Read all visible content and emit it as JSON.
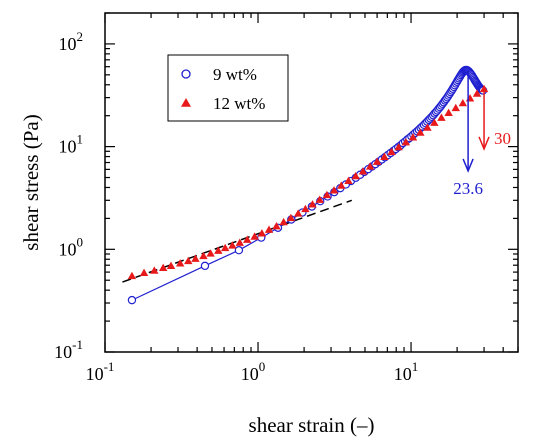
{
  "chart_data": {
    "type": "scatter",
    "xlabel": "shear strain (–)",
    "ylabel": "shear stress (Pa)",
    "x_scale": "log",
    "y_scale": "log",
    "xlim": [
      0.1,
      50
    ],
    "ylim": [
      0.1,
      200
    ],
    "x_ticks": [
      {
        "value": 0.1,
        "base": "10",
        "exp": "-1"
      },
      {
        "value": 1,
        "base": "10",
        "exp": "0"
      },
      {
        "value": 10,
        "base": "10",
        "exp": "1"
      }
    ],
    "y_ticks": [
      {
        "value": 0.1,
        "base": "10",
        "exp": "-1"
      },
      {
        "value": 1,
        "base": "10",
        "exp": "0"
      },
      {
        "value": 10,
        "base": "10",
        "exp": "1"
      },
      {
        "value": 100,
        "base": "10",
        "exp": "2"
      }
    ],
    "grid": false,
    "legend_position": "top-left",
    "series": [
      {
        "name": "9 wt%",
        "marker": "open-circle",
        "color": "#1f1fd0",
        "connected": true,
        "x": [
          0.15,
          0.45,
          0.75,
          1.05,
          1.35,
          1.65,
          1.95,
          2.25,
          2.55,
          2.85,
          3.15,
          3.45,
          3.75,
          4.05,
          4.35,
          4.65,
          4.95,
          5.25,
          5.55,
          5.85,
          6.15,
          6.45,
          6.75,
          7.05,
          7.35,
          7.65,
          7.95,
          8.25,
          8.55,
          8.85,
          9.15,
          9.45,
          9.75,
          10.05,
          10.35,
          10.65,
          10.95,
          11.25,
          11.55,
          11.85,
          12.15,
          12.45,
          12.75,
          13.05,
          13.35,
          13.65,
          13.95,
          14.25,
          14.55,
          14.85,
          15.15,
          15.45,
          15.75,
          16.05,
          16.35,
          16.65,
          16.95,
          17.25,
          17.55,
          17.85,
          18.15,
          18.45,
          18.75,
          19.05,
          19.35,
          19.65,
          19.95,
          20.25,
          20.55,
          20.85,
          21.15,
          21.45,
          21.75,
          22.05,
          22.35,
          22.65,
          22.95,
          23.25,
          23.55,
          23.85,
          24.15,
          24.45,
          24.75,
          25.05,
          25.35,
          25.65,
          25.95,
          26.25,
          26.55,
          26.85,
          27.15,
          27.45,
          27.75,
          28.05,
          28.35,
          28.65,
          28.95,
          29.25,
          29.55
        ],
        "y": [
          0.32,
          0.69,
          0.98,
          1.3,
          1.62,
          1.95,
          2.28,
          2.61,
          2.94,
          3.27,
          3.6,
          3.94,
          4.28,
          4.62,
          4.97,
          5.32,
          5.67,
          6.03,
          6.39,
          6.75,
          7.12,
          7.5,
          7.88,
          8.27,
          8.66,
          9.06,
          9.47,
          9.89,
          10.3,
          10.8,
          11.2,
          11.7,
          12.1,
          12.6,
          13.1,
          13.6,
          14.1,
          14.6,
          15.2,
          15.7,
          16.3,
          16.9,
          17.5,
          18.2,
          18.8,
          19.5,
          20.2,
          21,
          21.7,
          22.5,
          23.4,
          24.2,
          25.1,
          26.1,
          27,
          28.1,
          29.1,
          30.2,
          31.4,
          32.6,
          33.9,
          35.2,
          36.6,
          38.1,
          39.6,
          41.2,
          42.8,
          44.5,
          46.2,
          47.9,
          49.6,
          51.2,
          52.7,
          54,
          55,
          55.6,
          55.8,
          55.5,
          54.9,
          54,
          52.9,
          51.7,
          50.4,
          49.1,
          47.7,
          46.4,
          45.1,
          43.8,
          42.6,
          41.5,
          40.4,
          39.4,
          38.5,
          37.7,
          36.9,
          36.3,
          35.8,
          35.4,
          35.2
        ]
      },
      {
        "name": "12 wt%",
        "marker": "filled-triangle",
        "color": "#e8191b",
        "connected": false,
        "x": [
          0.15,
          0.18,
          0.21,
          0.24,
          0.27,
          0.31,
          0.35,
          0.39,
          0.44,
          0.49,
          0.55,
          0.61,
          0.68,
          0.76,
          0.85,
          0.95,
          1.06,
          1.18,
          1.32,
          1.47,
          1.64,
          1.83,
          2.04,
          2.27,
          2.53,
          2.82,
          3.14,
          3.5,
          3.9,
          4.35,
          4.85,
          5.4,
          6,
          6.7,
          7.45,
          8.3,
          9.25,
          10.3,
          11.5,
          12.8,
          14.2,
          15.8,
          17.6,
          19.6,
          21.8,
          24.3,
          27,
          30
        ],
        "y": [
          0.55,
          0.59,
          0.62,
          0.66,
          0.69,
          0.73,
          0.77,
          0.81,
          0.86,
          0.91,
          0.97,
          1.03,
          1.09,
          1.16,
          1.24,
          1.33,
          1.43,
          1.55,
          1.68,
          1.84,
          2.02,
          2.23,
          2.47,
          2.74,
          3.04,
          3.38,
          3.75,
          4.17,
          4.64,
          5.16,
          5.75,
          6.4,
          7.13,
          7.95,
          8.86,
          9.88,
          11.02,
          12.3,
          13.7,
          15.3,
          17.1,
          19.1,
          21.3,
          23.8,
          26.5,
          29.5,
          32.8,
          36.4
        ]
      }
    ],
    "fit_line": {
      "style": "dashed",
      "color": "#000000",
      "x": [
        0.13,
        4.1
      ],
      "y": [
        0.48,
        3.0
      ]
    },
    "annotations": [
      {
        "text": "23.6",
        "color": "#1f1fd0",
        "arrow_x": 23.6,
        "arrow_from_y": 55.8,
        "arrow_to_y": 5.8
      },
      {
        "text": "30",
        "color": "#e8191b",
        "arrow_x": 30,
        "arrow_from_y": 36.4,
        "arrow_to_y": 9.5
      }
    ]
  }
}
